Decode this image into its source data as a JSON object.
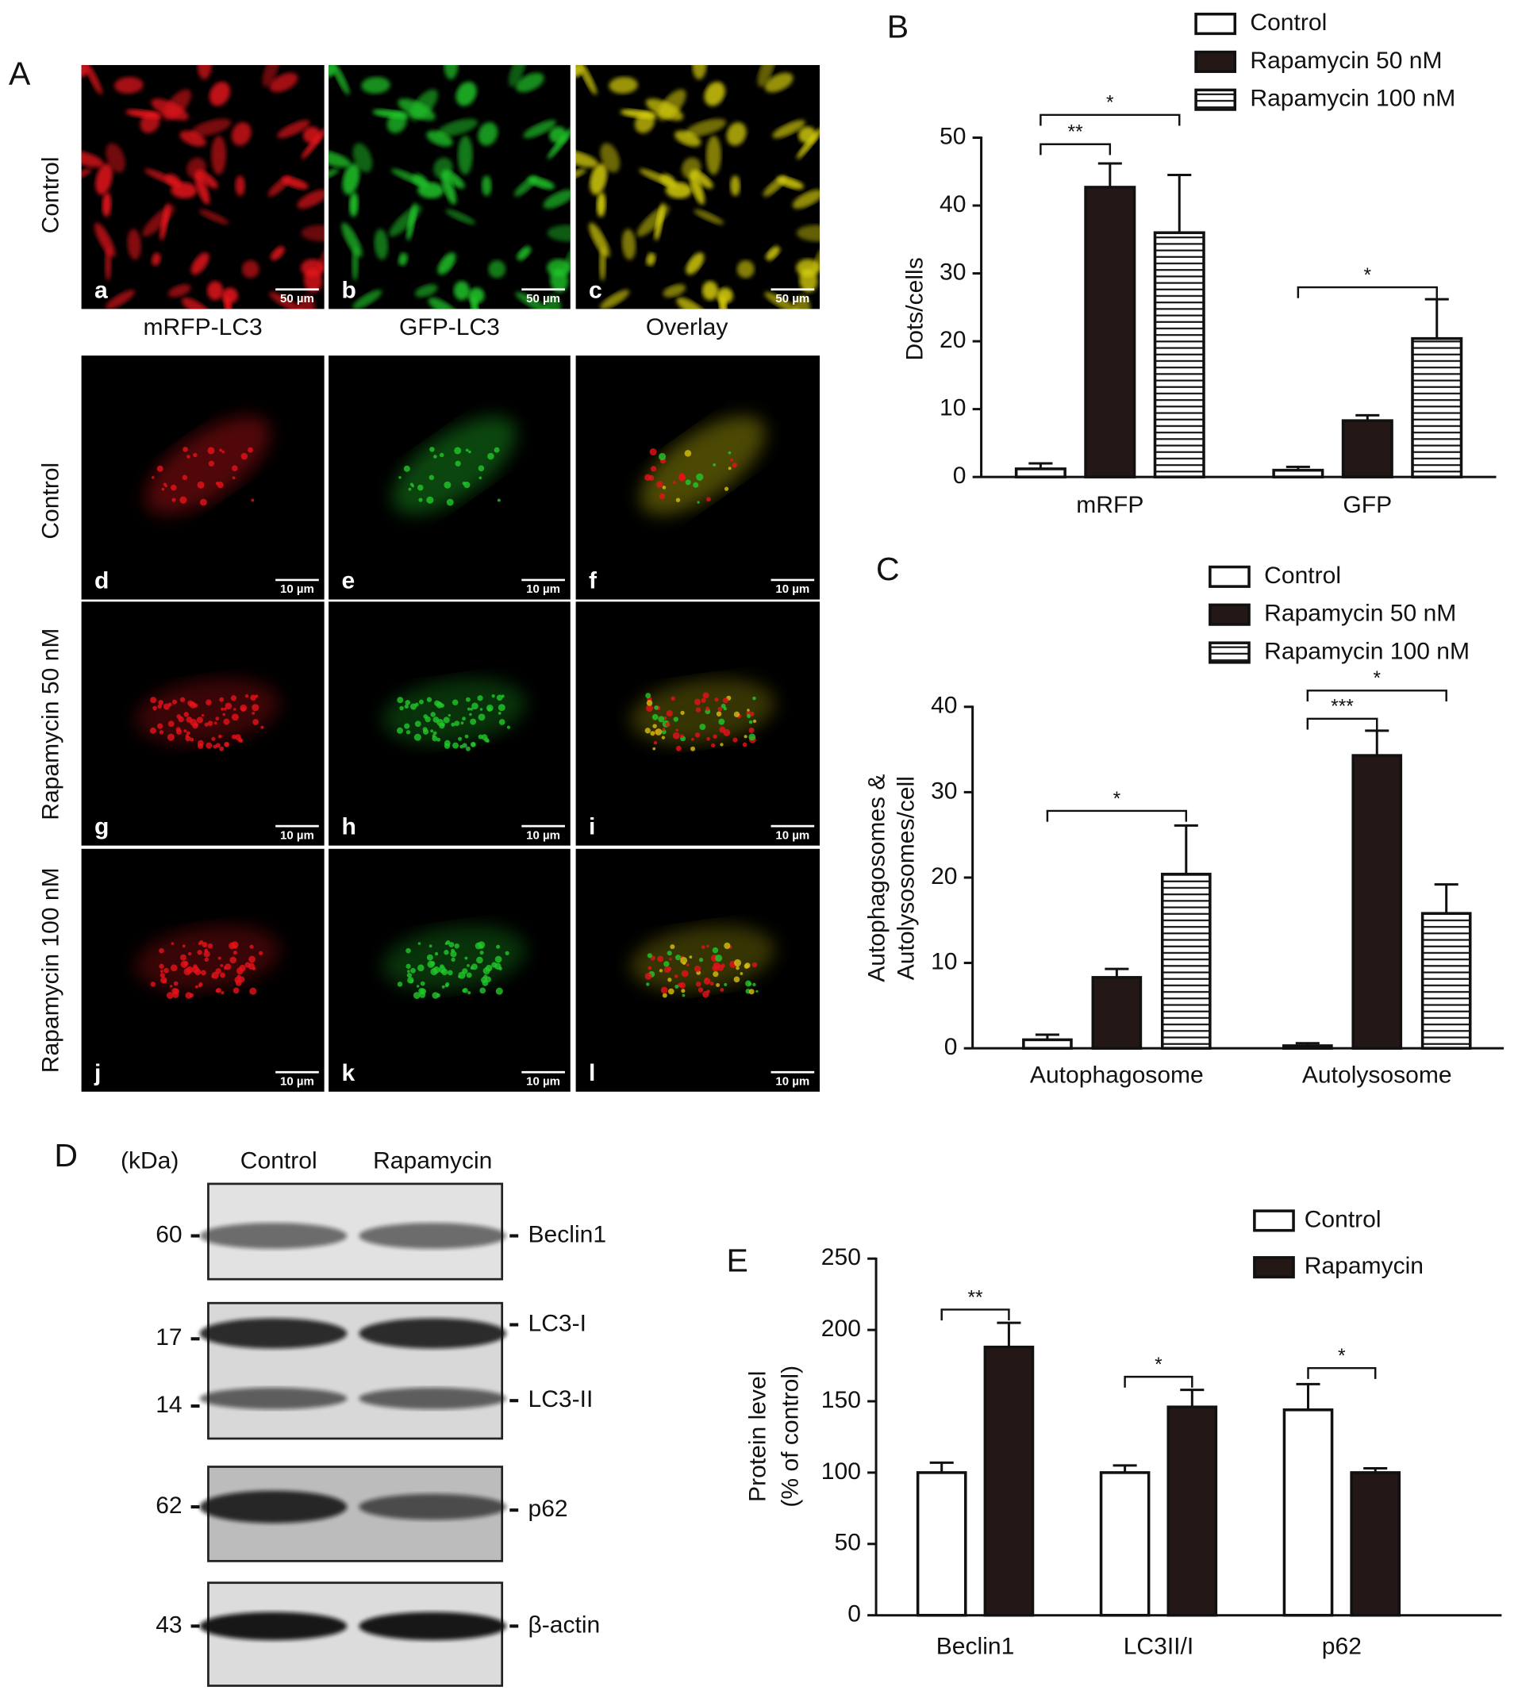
{
  "microscopy": {
    "panel_label": "A",
    "row_labels": [
      "Control",
      "Control",
      "Rapamycin 50 nM",
      "Rapamycin 100 nM"
    ],
    "column_labels": [
      "mRFP-LC3",
      "GFP-LC3",
      "Overlay"
    ],
    "tiles": [
      {
        "letter": "a",
        "scale_bar": "50 µm"
      },
      {
        "letter": "b",
        "scale_bar": "50 µm"
      },
      {
        "letter": "c",
        "scale_bar": "50 µm"
      },
      {
        "letter": "d",
        "scale_bar": "10 µm"
      },
      {
        "letter": "e",
        "scale_bar": "10 µm"
      },
      {
        "letter": "f",
        "scale_bar": "10 µm"
      },
      {
        "letter": "g",
        "scale_bar": "10 µm"
      },
      {
        "letter": "h",
        "scale_bar": "10 µm"
      },
      {
        "letter": "i",
        "scale_bar": "10 µm"
      },
      {
        "letter": "j",
        "scale_bar": "10 µm"
      },
      {
        "letter": "k",
        "scale_bar": "10 µm"
      },
      {
        "letter": "l",
        "scale_bar": "10 µm"
      }
    ]
  },
  "chart_data": [
    {
      "type": "bar",
      "panel_label": "B",
      "ylabel": [
        "Dots/cells"
      ],
      "categories": [
        "mRFP",
        "GFP"
      ],
      "series": [
        {
          "name": "Control",
          "color": "#ffffff",
          "values": [
            1.2,
            1.0
          ],
          "errors": [
            0.8,
            0.5
          ]
        },
        {
          "name": "Rapamycin 50 nM",
          "color": "#231815",
          "values": [
            42.7,
            8.3
          ],
          "errors": [
            3.5,
            0.8
          ]
        },
        {
          "name": "Rapamycin 100 nM",
          "color": "#ffffff",
          "hatch": "horizontal",
          "values": [
            36.0,
            20.4
          ],
          "errors": [
            8.5,
            5.8
          ]
        }
      ],
      "ylim": [
        0,
        50
      ],
      "yticks": [
        0,
        10,
        20,
        30,
        40,
        50
      ],
      "annotations": [
        "*",
        "**",
        "*"
      ]
    },
    {
      "type": "bar",
      "panel_label": "C",
      "ylabel": [
        "Autophagosomes &",
        "Autolysosomes/cell"
      ],
      "categories": [
        "Autophagosome",
        "Autolysosome"
      ],
      "series": [
        {
          "name": "Control",
          "color": "#ffffff",
          "values": [
            1.0,
            0.3
          ],
          "errors": [
            0.6,
            0.3
          ]
        },
        {
          "name": "Rapamycin 50 nM",
          "color": "#231815",
          "values": [
            8.3,
            34.3
          ],
          "errors": [
            1.0,
            2.9
          ]
        },
        {
          "name": "Rapamycin 100 nM",
          "color": "#ffffff",
          "hatch": "horizontal",
          "values": [
            20.4,
            15.8
          ],
          "errors": [
            5.7,
            3.4
          ]
        }
      ],
      "ylim": [
        0,
        40
      ],
      "yticks": [
        0,
        10,
        20,
        30,
        40
      ],
      "annotations": [
        "*",
        "***",
        "*"
      ]
    },
    {
      "type": "bar",
      "panel_label": "E",
      "ylabel": [
        "Protein level",
        "(% of control)"
      ],
      "categories": [
        "Beclin1",
        "LC3II/I",
        "p62"
      ],
      "series": [
        {
          "name": "Control",
          "color": "#ffffff",
          "values": [
            100,
            100,
            144
          ],
          "errors": [
            7,
            5,
            18
          ]
        },
        {
          "name": "Rapamycin",
          "color": "#231815",
          "values": [
            188,
            146,
            100
          ],
          "errors": [
            17,
            12,
            3
          ]
        }
      ],
      "ylim": [
        0,
        250
      ],
      "yticks": [
        0,
        50,
        100,
        150,
        200,
        250
      ],
      "annotations": [
        "**",
        "*",
        "*"
      ]
    }
  ],
  "western_blot": {
    "panel_label": "D",
    "unit_label": "(kDa)",
    "lanes": [
      "Control",
      "Rapamycin"
    ],
    "markers": [
      60,
      17,
      14,
      62,
      43
    ],
    "bands": [
      "Beclin1",
      "LC3-I",
      "LC3-II",
      "p62",
      "β-actin"
    ]
  }
}
